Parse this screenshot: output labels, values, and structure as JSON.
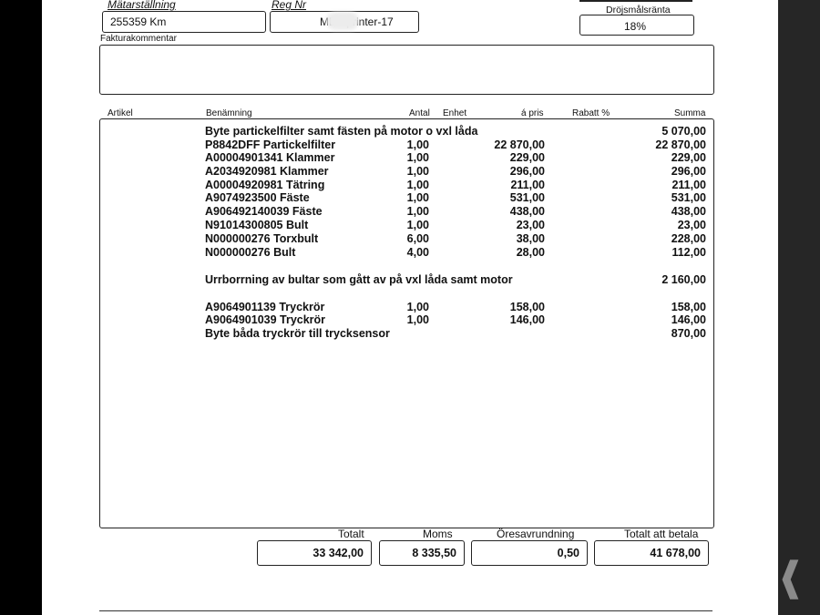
{
  "header": {
    "matarstallning_label": "Mätarställning",
    "matarstallning_value": "255359 Km",
    "regnr_label": "Reg Nr",
    "regnr_value": "MB Sprinter-17",
    "drojsmal_label": "Dröjsmålsränta",
    "drojsmal_value": "18%",
    "kommentar_label": "Fakturakommentar"
  },
  "columns": {
    "artikel": "Artikel",
    "benamning": "Benämning",
    "antal": "Antal",
    "enhet": "Enhet",
    "apris": "á pris",
    "rabatt": "Rabatt %",
    "summa": "Summa"
  },
  "rows": [
    {
      "text": "Byte partickelfilter samt fästen på motor o vxl låda",
      "antal": "",
      "apris": "",
      "summa": "5 070,00"
    },
    {
      "text": "P8842DFF Partickelfilter",
      "antal": "1,00",
      "apris": "22 870,00",
      "summa": "22 870,00"
    },
    {
      "text": "A00004901341 Klammer",
      "antal": "1,00",
      "apris": "229,00",
      "summa": "229,00"
    },
    {
      "text": "A2034920981 Klammer",
      "antal": "1,00",
      "apris": "296,00",
      "summa": "296,00"
    },
    {
      "text": "A00004920981 Tätring",
      "antal": "1,00",
      "apris": "211,00",
      "summa": "211,00"
    },
    {
      "text": "A9074923500 Fäste",
      "antal": "1,00",
      "apris": "531,00",
      "summa": "531,00"
    },
    {
      "text": "A906492140039 Fäste",
      "antal": "1,00",
      "apris": "438,00",
      "summa": "438,00"
    },
    {
      "text": "N91014300805 Bult",
      "antal": "1,00",
      "apris": "23,00",
      "summa": "23,00"
    },
    {
      "text": "N000000276 Torxbult",
      "antal": "6,00",
      "apris": "38,00",
      "summa": "228,00"
    },
    {
      "text": "N000000276 Bult",
      "antal": "4,00",
      "apris": "28,00",
      "summa": "112,00"
    },
    {
      "text": "Urrborrning av bultar som gått av på vxl låda samt motor",
      "antal": "",
      "apris": "",
      "summa": "2 160,00"
    },
    {
      "text": "A9064901139 Tryckrör",
      "antal": "1,00",
      "apris": "158,00",
      "summa": "158,00"
    },
    {
      "text": "A9064901039 Tryckrör",
      "antal": "1,00",
      "apris": "146,00",
      "summa": "146,00"
    },
    {
      "text": "Byte båda tryckrör till trycksensor",
      "antal": "",
      "apris": "",
      "summa": "870,00"
    }
  ],
  "totals": {
    "totalt_label": "Totalt",
    "totalt": "33 342,00",
    "moms_label": "Moms",
    "moms": "8 335,50",
    "ore_label": "Öresavrundning",
    "ore": "0,50",
    "betala_label": "Totalt att betala",
    "betala": "41 678,00"
  },
  "viewer": {
    "next_icon": "chevron-icon"
  }
}
